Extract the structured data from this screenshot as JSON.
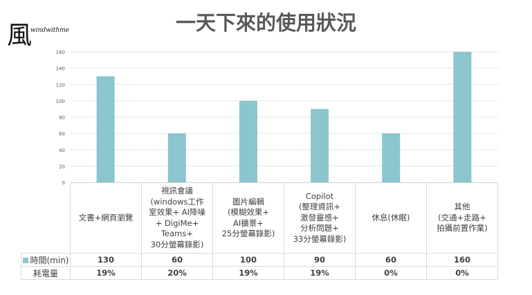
{
  "logo": {
    "glyph": "風",
    "text": "windwithme"
  },
  "title": "一天下來的使用狀況",
  "chart_data": {
    "type": "bar",
    "title": "一天下來的使用狀況",
    "categories": [
      "文書+網頁瀏覽",
      "視訊會議\n(windows工作\n室效果+ AI降噪\n+ DigiMe+\nTeams+\n30分螢幕錄影)",
      "圖片編輯\n(模糊效果+\nAI擴景+\n25分螢幕錄影)",
      "Copilot\n(整理資訊+\n激發靈感+\n分析問題+\n33分螢幕錄影)",
      "休息(休眠)",
      "其他\n(交通+走路+\n拍攝前置作業)"
    ],
    "series": [
      {
        "name": "時間(min)",
        "values": [
          130,
          60,
          100,
          90,
          60,
          160
        ],
        "color": "#8bc5cd"
      }
    ],
    "table_rows": [
      {
        "label": "耗電量",
        "values": [
          "19%",
          "20%",
          "19%",
          "19%",
          "0%",
          "0%"
        ]
      }
    ],
    "ylim": [
      0,
      160
    ],
    "yticks": [
      "0",
      "20",
      "40",
      "60",
      "80",
      "100",
      "120",
      "140",
      "160"
    ],
    "grid": true,
    "legend": "in data table"
  }
}
